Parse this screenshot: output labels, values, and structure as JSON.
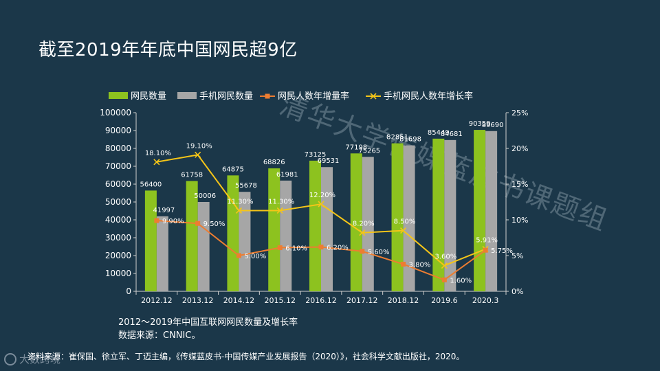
{
  "title": "截至2019年年底中国网民超9亿",
  "watermark": "清华大学传媒蓝皮书课题组",
  "caption": "2012～2019年中国互联网网民数量及增长率",
  "data_source": "数据来源：CNNIC。",
  "source_note": "资料来源：崔保国、徐立军、丁迈主编，《传媒蓝皮书-中国传媒产业发展报告（2020）》，社会科学文献出版社，2020。",
  "logo_text": "大数跨境",
  "colors": {
    "background": "#1b3749",
    "netizens": "#8dc21f",
    "mobile": "#a6a6a6",
    "netizen_growth": "#ed7d31",
    "mobile_growth": "#f5c518"
  },
  "chart_data": {
    "type": "bar",
    "categories": [
      "2012.12",
      "2013.12",
      "2014.12",
      "2015.12",
      "2016.12",
      "2017.12",
      "2018.12",
      "2019.6",
      "2020.3"
    ],
    "series": [
      {
        "name": "网民数量",
        "kind": "bar",
        "axis": "left",
        "values": [
          56400,
          61758,
          64875,
          68826,
          73125,
          77198,
          82851,
          85449,
          90359
        ]
      },
      {
        "name": "手机网民数量",
        "kind": "bar",
        "axis": "left",
        "values": [
          41997,
          50006,
          55678,
          61981,
          69531,
          75265,
          81698,
          84681,
          89690
        ]
      },
      {
        "name": "网民人数年增量率",
        "kind": "line",
        "axis": "right",
        "values": [
          9.9,
          9.5,
          5.0,
          6.1,
          6.2,
          5.6,
          3.8,
          1.6,
          5.75
        ]
      },
      {
        "name": "手机网民人数年增长率",
        "kind": "line",
        "axis": "right",
        "values": [
          18.1,
          19.1,
          11.3,
          11.3,
          12.2,
          8.2,
          8.5,
          3.6,
          5.91
        ]
      }
    ],
    "value_labels": {
      "netizens": [
        "56400",
        "61758",
        "64875",
        "68826",
        "73125",
        "77198",
        "82851",
        "85449",
        "90359"
      ],
      "mobile": [
        "41997",
        "50006",
        "55678",
        "61981",
        "69531",
        "75265",
        "81698",
        "84681",
        "89690"
      ],
      "netizen_growth": [
        "9.90%",
        "9.50%",
        "5.00%",
        "6.10%",
        "6.20%",
        "5.60%",
        "3.80%",
        "1.60%",
        "5.75%"
      ],
      "mobile_growth": [
        "18.10%",
        "19.10%",
        "11.30%",
        "11.30%",
        "12.20%",
        "8.20%",
        "8.50%",
        "3.60%",
        "5.91%"
      ]
    },
    "ylim_left": [
      0,
      100000
    ],
    "yticks_left": [
      "0",
      "10000",
      "20000",
      "30000",
      "40000",
      "50000",
      "60000",
      "70000",
      "80000",
      "90000",
      "100000"
    ],
    "ylim_right": [
      0,
      25
    ],
    "yticks_right": [
      "0%",
      "5%",
      "10%",
      "15%",
      "20%",
      "25%"
    ],
    "legend": [
      "网民数量",
      "手机网民数量",
      "网民人数年增量率",
      "手机网民人数年增长率"
    ],
    "legend_position": "top"
  }
}
